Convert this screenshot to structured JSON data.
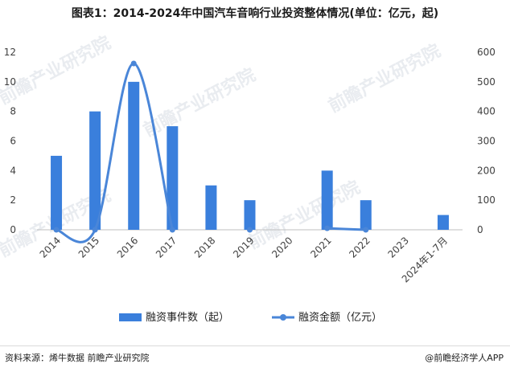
{
  "title": "图表1：2014-2024年中国汽车音响行业投资整体情况(单位：亿元，起)",
  "watermark": "前瞻产业研究院",
  "source_text": "资料来源：烯牛数据 前瞻产业研究院",
  "credit_text": "@前瞻经济学人APP",
  "colors": {
    "bar": "#3a7fdc",
    "line": "#4a86d8",
    "axis": "#bfbfbf",
    "text": "#404040"
  },
  "chart_data": {
    "type": "bar",
    "categories": [
      "2014",
      "2015",
      "2016",
      "2017",
      "2018",
      "2019",
      "2020",
      "2021",
      "2022",
      "2023",
      "2024年1-7月"
    ],
    "series": [
      {
        "name": "融资事件数（起）",
        "type": "bar",
        "axis": "left",
        "values": [
          5,
          8,
          10,
          7,
          3,
          2,
          0,
          4,
          2,
          0,
          1
        ]
      },
      {
        "name": "融资金额（亿元）",
        "type": "line",
        "axis": "right",
        "values": [
          0,
          0,
          562,
          0,
          null,
          0,
          null,
          5,
          0,
          null,
          null
        ]
      }
    ],
    "ylim_left": [
      0,
      12
    ],
    "yticks_left": [
      0,
      2,
      4,
      6,
      8,
      10,
      12
    ],
    "ylim_right": [
      0,
      600
    ],
    "yticks_right": [
      0,
      100,
      200,
      300,
      400,
      500,
      600
    ],
    "legend_position": "bottom",
    "grid": false
  }
}
